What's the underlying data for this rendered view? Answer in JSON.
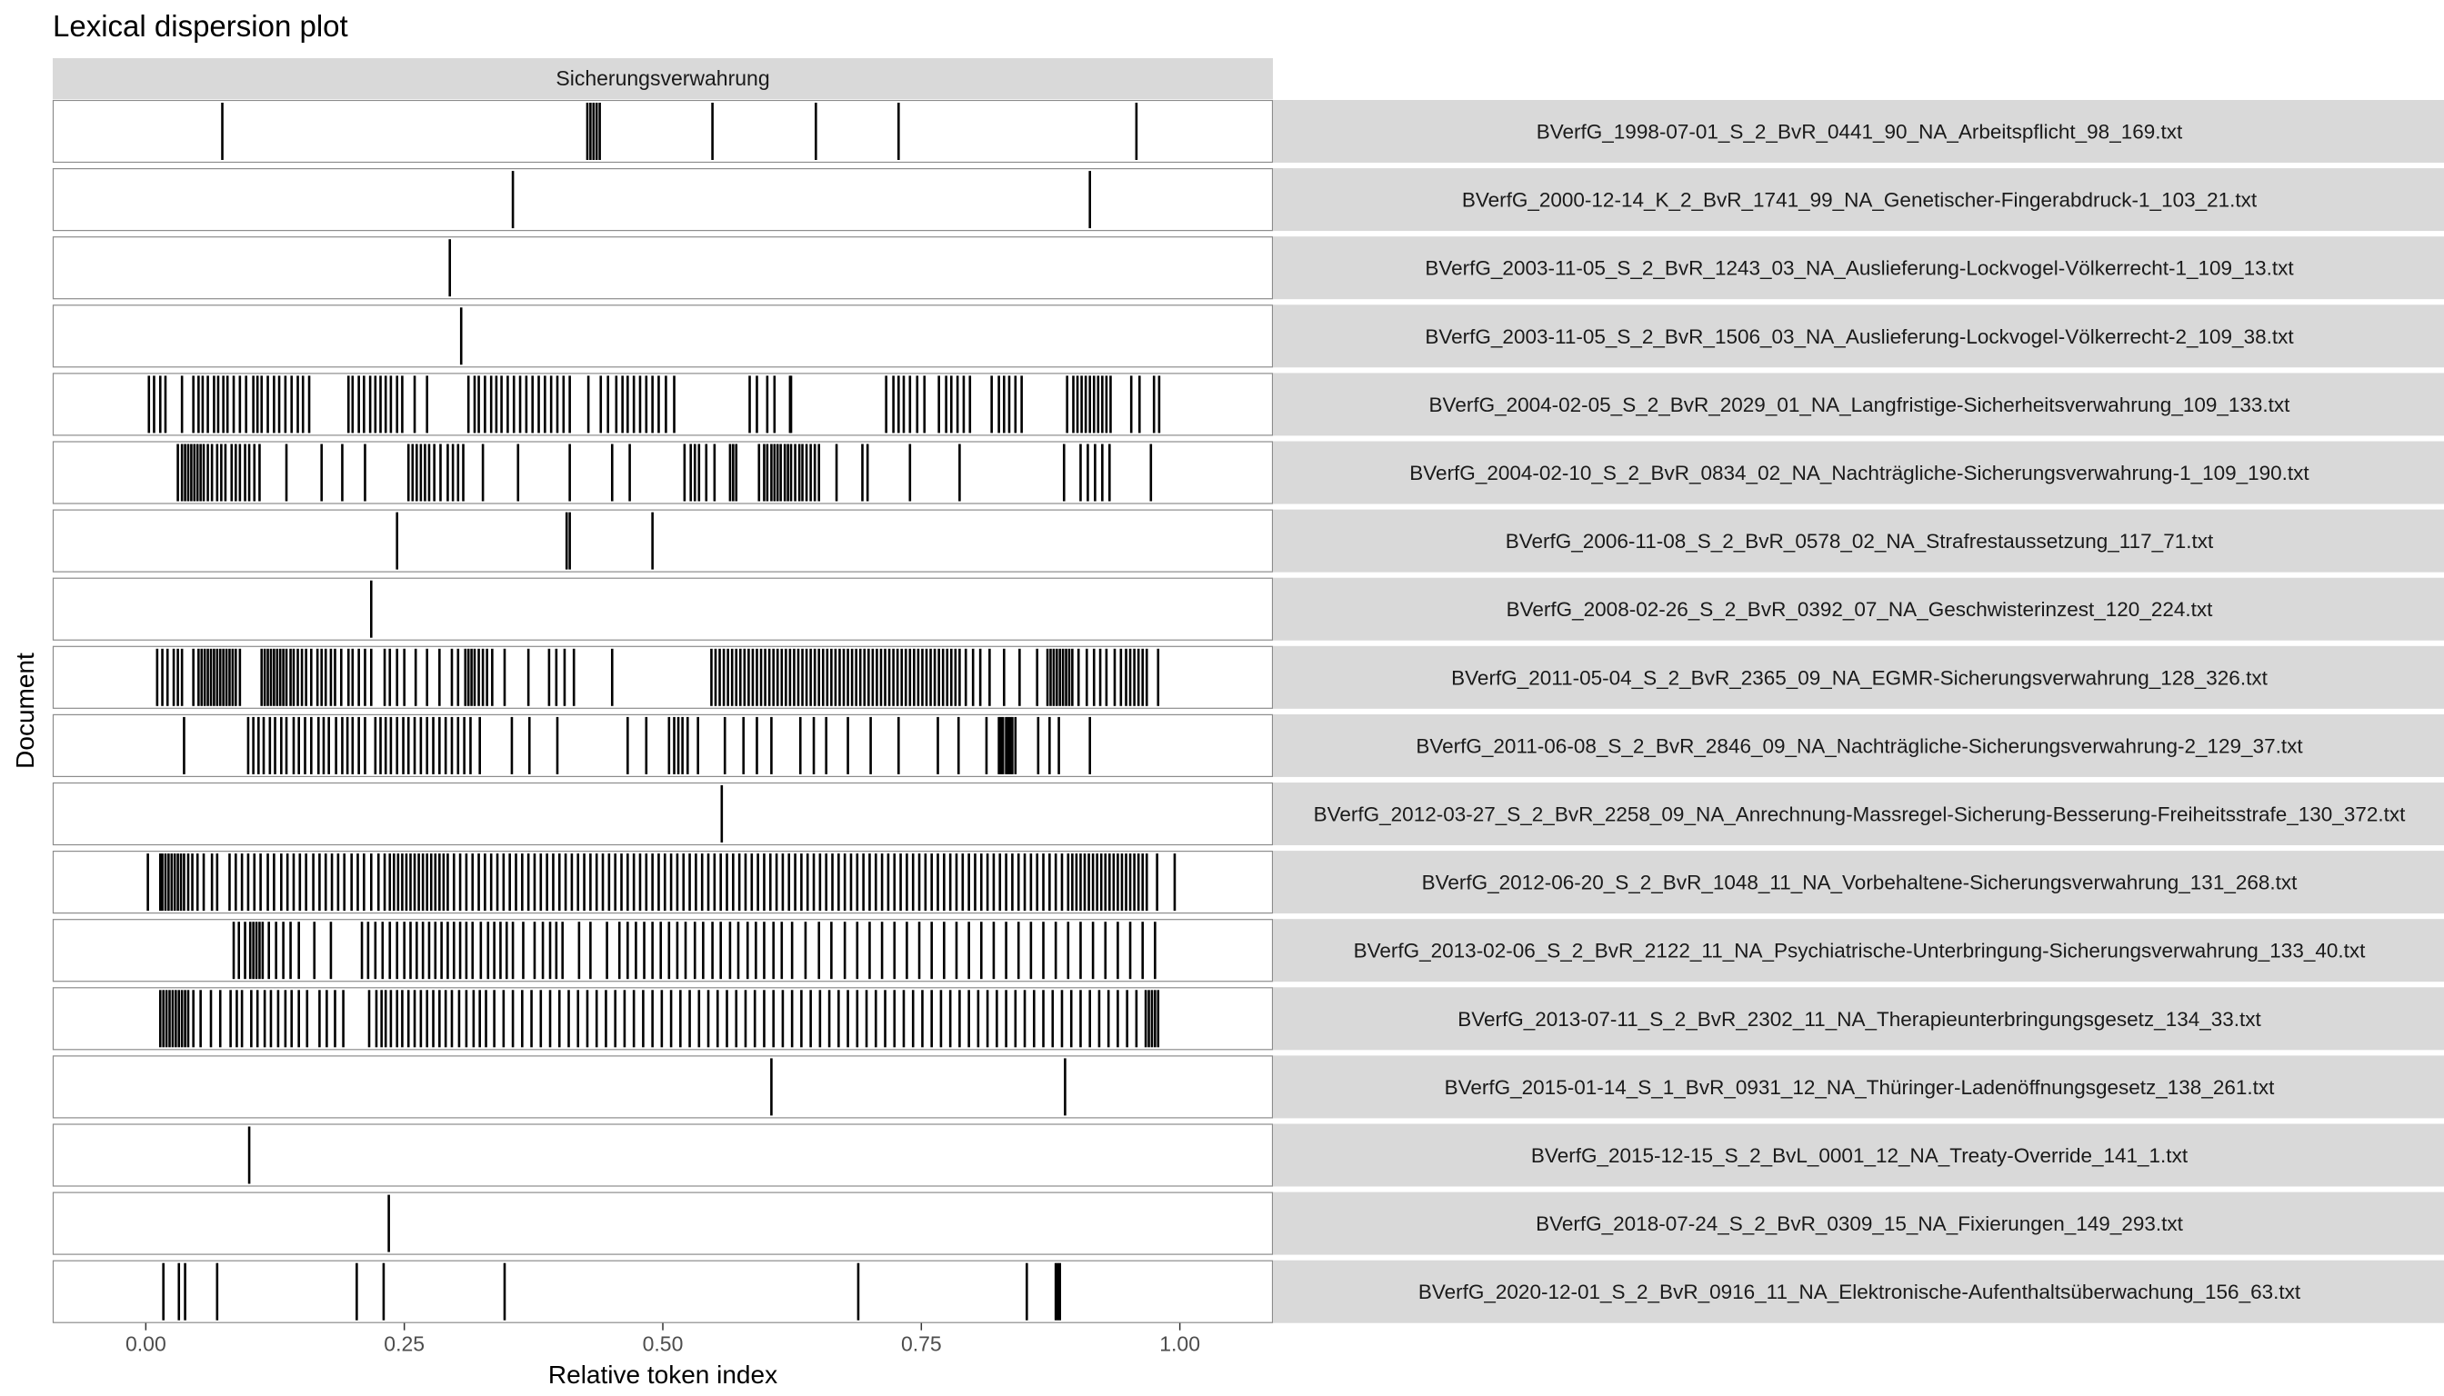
{
  "chart_data": {
    "type": "lexical-dispersion",
    "title": "Lexical dispersion plot",
    "facet_label": "Sicherungsverwahrung",
    "xlabel": "Relative token index",
    "ylabel": "Document",
    "xlim": [
      -0.09,
      1.09
    ],
    "x_ticks": [
      {
        "value": 0.0,
        "label": "0.00"
      },
      {
        "value": 0.25,
        "label": "0.25"
      },
      {
        "value": 0.5,
        "label": "0.50"
      },
      {
        "value": 0.75,
        "label": "0.75"
      },
      {
        "value": 1.0,
        "label": "1.00"
      }
    ],
    "colors": {
      "strip_fill": "#d9d9d9",
      "panel_border": "#8c8c8c",
      "mark": "#000000",
      "tick": "#333333"
    },
    "documents": [
      {
        "name": "BVerfG_1998-07-01_S_2_BvR_0441_90_NA_Arbeitspflicht_98_169.txt",
        "positions": [
          0.074,
          0.427,
          0.43,
          0.433,
          0.436,
          0.439,
          0.548,
          0.648,
          0.728,
          0.958
        ]
      },
      {
        "name": "BVerfG_2000-12-14_K_2_BvR_1741_99_NA_Genetischer-Fingerabdruck-1_103_21.txt",
        "positions": [
          0.355,
          0.913
        ]
      },
      {
        "name": "BVerfG_2003-11-05_S_2_BvR_1243_03_NA_Auslieferung-Lockvogel-Völkerrecht-1_109_13.txt",
        "positions": [
          0.294
        ]
      },
      {
        "name": "BVerfG_2003-11-05_S_2_BvR_1506_03_NA_Auslieferung-Lockvogel-Völkerrecht-2_109_38.txt",
        "positions": [
          0.305
        ]
      },
      {
        "name": "BVerfG_2004-02-05_S_2_BvR_2029_01_NA_Langfristige-Sicherheitsverwahrung_109_133.txt",
        "positions": [
          0.003,
          0.008,
          0.014,
          0.019,
          0.035,
          0.046,
          0.051,
          0.055,
          0.06,
          0.066,
          0.07,
          0.075,
          0.079,
          0.085,
          0.091,
          0.097,
          0.104,
          0.108,
          0.112,
          0.118,
          0.124,
          0.129,
          0.135,
          0.141,
          0.147,
          0.152,
          0.158,
          0.196,
          0.2,
          0.206,
          0.211,
          0.217,
          0.222,
          0.227,
          0.232,
          0.237,
          0.243,
          0.248,
          0.26,
          0.272,
          0.312,
          0.318,
          0.322,
          0.328,
          0.334,
          0.339,
          0.344,
          0.35,
          0.356,
          0.362,
          0.368,
          0.374,
          0.38,
          0.386,
          0.392,
          0.398,
          0.404,
          0.41,
          0.428,
          0.44,
          0.447,
          0.455,
          0.461,
          0.466,
          0.472,
          0.478,
          0.484,
          0.49,
          0.496,
          0.503,
          0.511,
          0.584,
          0.591,
          0.601,
          0.608,
          0.623,
          0.624,
          0.716,
          0.723,
          0.728,
          0.733,
          0.739,
          0.746,
          0.753,
          0.767,
          0.774,
          0.779,
          0.785,
          0.791,
          0.797,
          0.818,
          0.825,
          0.83,
          0.835,
          0.841,
          0.847,
          0.891,
          0.897,
          0.901,
          0.905,
          0.909,
          0.913,
          0.917,
          0.921,
          0.925,
          0.929,
          0.933,
          0.953,
          0.961,
          0.975,
          0.98
        ]
      },
      {
        "name": "BVerfG_2004-02-10_S_2_BvR_0834_02_NA_Nachträgliche-Sicherungsverwahrung-1_109_190.txt",
        "positions": [
          0.031,
          0.035,
          0.038,
          0.041,
          0.044,
          0.047,
          0.05,
          0.053,
          0.056,
          0.06,
          0.064,
          0.069,
          0.073,
          0.077,
          0.083,
          0.087,
          0.091,
          0.096,
          0.1,
          0.105,
          0.11,
          0.136,
          0.17,
          0.19,
          0.212,
          0.254,
          0.258,
          0.262,
          0.266,
          0.27,
          0.274,
          0.279,
          0.285,
          0.292,
          0.297,
          0.302,
          0.307,
          0.326,
          0.36,
          0.41,
          0.451,
          0.468,
          0.521,
          0.527,
          0.531,
          0.535,
          0.542,
          0.55,
          0.565,
          0.568,
          0.571,
          0.593,
          0.598,
          0.601,
          0.605,
          0.608,
          0.611,
          0.614,
          0.618,
          0.621,
          0.624,
          0.628,
          0.632,
          0.635,
          0.639,
          0.643,
          0.647,
          0.651,
          0.668,
          0.693,
          0.698,
          0.739,
          0.787,
          0.888,
          0.904,
          0.911,
          0.918,
          0.925,
          0.932,
          0.972
        ]
      },
      {
        "name": "BVerfG_2006-11-08_S_2_BvR_0578_02_NA_Strafrestaussetzung_117_71.txt",
        "positions": [
          0.243,
          0.407,
          0.41,
          0.49
        ]
      },
      {
        "name": "BVerfG_2008-02-26_S_2_BvR_0392_07_NA_Geschwisterinzest_120_224.txt",
        "positions": [
          0.218
        ]
      },
      {
        "name": "BVerfG_2011-05-04_S_2_BvR_2365_09_NA_EGMR-Sicherungsverwahrung_128_326.txt",
        "positions": [
          0.011,
          0.016,
          0.021,
          0.027,
          0.031,
          0.035,
          0.046,
          0.051,
          0.054,
          0.057,
          0.06,
          0.063,
          0.066,
          0.069,
          0.072,
          0.075,
          0.078,
          0.081,
          0.084,
          0.087,
          0.091,
          0.112,
          0.115,
          0.118,
          0.121,
          0.124,
          0.127,
          0.13,
          0.133,
          0.136,
          0.14,
          0.143,
          0.147,
          0.151,
          0.155,
          0.16,
          0.166,
          0.17,
          0.174,
          0.179,
          0.183,
          0.189,
          0.196,
          0.2,
          0.206,
          0.212,
          0.218,
          0.231,
          0.236,
          0.243,
          0.25,
          0.261,
          0.272,
          0.284,
          0.296,
          0.302,
          0.309,
          0.312,
          0.315,
          0.318,
          0.322,
          0.326,
          0.33,
          0.335,
          0.347,
          0.37,
          0.39,
          0.397,
          0.405,
          0.414,
          0.451,
          0.547,
          0.551,
          0.555,
          0.559,
          0.563,
          0.567,
          0.571,
          0.575,
          0.579,
          0.583,
          0.587,
          0.591,
          0.595,
          0.599,
          0.603,
          0.607,
          0.611,
          0.615,
          0.619,
          0.623,
          0.627,
          0.631,
          0.635,
          0.639,
          0.643,
          0.647,
          0.651,
          0.655,
          0.659,
          0.663,
          0.667,
          0.671,
          0.675,
          0.679,
          0.683,
          0.687,
          0.691,
          0.695,
          0.699,
          0.703,
          0.707,
          0.711,
          0.715,
          0.719,
          0.723,
          0.727,
          0.731,
          0.735,
          0.739,
          0.743,
          0.747,
          0.751,
          0.755,
          0.759,
          0.763,
          0.767,
          0.771,
          0.775,
          0.779,
          0.783,
          0.787,
          0.793,
          0.8,
          0.807,
          0.816,
          0.83,
          0.845,
          0.862,
          0.872,
          0.875,
          0.878,
          0.881,
          0.884,
          0.887,
          0.89,
          0.893,
          0.896,
          0.902,
          0.91,
          0.917,
          0.923,
          0.929,
          0.937,
          0.943,
          0.948,
          0.952,
          0.956,
          0.96,
          0.964,
          0.968,
          0.979
        ]
      },
      {
        "name": "BVerfG_2011-06-08_S_2_BvR_2846_09_NA_Nachträgliche-Sicherungsverwahrung-2_129_37.txt",
        "positions": [
          0.037,
          0.099,
          0.104,
          0.109,
          0.114,
          0.12,
          0.125,
          0.131,
          0.136,
          0.143,
          0.148,
          0.154,
          0.16,
          0.167,
          0.172,
          0.177,
          0.184,
          0.19,
          0.195,
          0.2,
          0.206,
          0.212,
          0.222,
          0.227,
          0.232,
          0.237,
          0.243,
          0.249,
          0.254,
          0.26,
          0.266,
          0.272,
          0.278,
          0.284,
          0.29,
          0.296,
          0.302,
          0.308,
          0.314,
          0.323,
          0.354,
          0.371,
          0.398,
          0.466,
          0.484,
          0.506,
          0.511,
          0.515,
          0.519,
          0.524,
          0.534,
          0.56,
          0.578,
          0.591,
          0.605,
          0.633,
          0.646,
          0.658,
          0.679,
          0.701,
          0.728,
          0.766,
          0.786,
          0.813,
          0.825,
          0.827,
          0.829,
          0.832,
          0.834,
          0.836,
          0.838,
          0.841,
          0.863,
          0.874,
          0.883,
          0.913
        ]
      },
      {
        "name": "BVerfG_2012-03-27_S_2_BvR_2258_09_NA_Anrechnung-Massregel-Sicherung-Besserung-Freiheitsstrafe_130_372.txt",
        "positions": [
          0.557
        ]
      },
      {
        "name": "BVerfG_2012-06-20_S_2_BvR_1048_11_NA_Vorbehaltene-Sicherungsverwahrung_131_268.txt",
        "positions": [
          0.002,
          0.014,
          0.016,
          0.019,
          0.022,
          0.025,
          0.028,
          0.031,
          0.034,
          0.037,
          0.041,
          0.045,
          0.05,
          0.056,
          0.064,
          0.069,
          0.081,
          0.087,
          0.093,
          0.099,
          0.105,
          0.111,
          0.118,
          0.124,
          0.131,
          0.137,
          0.143,
          0.149,
          0.155,
          0.162,
          0.168,
          0.174,
          0.18,
          0.186,
          0.192,
          0.199,
          0.205,
          0.211,
          0.218,
          0.225,
          0.231,
          0.236,
          0.24,
          0.244,
          0.248,
          0.252,
          0.256,
          0.26,
          0.264,
          0.268,
          0.272,
          0.276,
          0.28,
          0.284,
          0.288,
          0.292,
          0.298,
          0.304,
          0.31,
          0.316,
          0.322,
          0.328,
          0.334,
          0.34,
          0.346,
          0.352,
          0.358,
          0.364,
          0.37,
          0.376,
          0.382,
          0.388,
          0.394,
          0.4,
          0.406,
          0.412,
          0.418,
          0.424,
          0.43,
          0.436,
          0.442,
          0.448,
          0.454,
          0.46,
          0.466,
          0.472,
          0.478,
          0.484,
          0.49,
          0.496,
          0.502,
          0.508,
          0.514,
          0.52,
          0.526,
          0.532,
          0.538,
          0.544,
          0.55,
          0.556,
          0.562,
          0.568,
          0.574,
          0.58,
          0.586,
          0.592,
          0.598,
          0.604,
          0.61,
          0.616,
          0.622,
          0.628,
          0.634,
          0.64,
          0.646,
          0.652,
          0.658,
          0.664,
          0.67,
          0.676,
          0.682,
          0.688,
          0.694,
          0.7,
          0.706,
          0.712,
          0.718,
          0.724,
          0.73,
          0.736,
          0.742,
          0.748,
          0.754,
          0.76,
          0.766,
          0.772,
          0.778,
          0.784,
          0.79,
          0.796,
          0.802,
          0.808,
          0.814,
          0.82,
          0.826,
          0.832,
          0.838,
          0.844,
          0.85,
          0.856,
          0.862,
          0.868,
          0.874,
          0.88,
          0.886,
          0.892,
          0.896,
          0.9,
          0.904,
          0.908,
          0.912,
          0.916,
          0.92,
          0.924,
          0.928,
          0.932,
          0.936,
          0.94,
          0.944,
          0.948,
          0.952,
          0.956,
          0.96,
          0.964,
          0.968,
          0.978,
          0.995
        ]
      },
      {
        "name": "BVerfG_2013-02-06_S_2_BvR_2122_11_NA_Psychiatrische-Unterbringung-Sicherungsverwahrung_133_40.txt",
        "positions": [
          0.085,
          0.09,
          0.096,
          0.101,
          0.104,
          0.107,
          0.11,
          0.113,
          0.119,
          0.126,
          0.133,
          0.14,
          0.148,
          0.163,
          0.179,
          0.209,
          0.215,
          0.222,
          0.229,
          0.236,
          0.243,
          0.25,
          0.256,
          0.262,
          0.268,
          0.274,
          0.28,
          0.286,
          0.292,
          0.298,
          0.304,
          0.31,
          0.316,
          0.324,
          0.331,
          0.337,
          0.343,
          0.349,
          0.355,
          0.365,
          0.376,
          0.384,
          0.391,
          0.397,
          0.403,
          0.419,
          0.43,
          0.446,
          0.458,
          0.466,
          0.474,
          0.482,
          0.49,
          0.498,
          0.506,
          0.514,
          0.522,
          0.531,
          0.539,
          0.548,
          0.556,
          0.565,
          0.573,
          0.582,
          0.59,
          0.598,
          0.607,
          0.615,
          0.625,
          0.638,
          0.651,
          0.663,
          0.676,
          0.688,
          0.7,
          0.712,
          0.724,
          0.736,
          0.748,
          0.76,
          0.772,
          0.784,
          0.796,
          0.808,
          0.82,
          0.832,
          0.844,
          0.856,
          0.868,
          0.88,
          0.892,
          0.904,
          0.916,
          0.928,
          0.94,
          0.952,
          0.964,
          0.976
        ]
      },
      {
        "name": "BVerfG_2013-07-11_S_2_BvR_2302_11_NA_Therapieunterbringungsgesetz_134_33.txt",
        "positions": [
          0.014,
          0.017,
          0.02,
          0.023,
          0.026,
          0.029,
          0.032,
          0.035,
          0.038,
          0.041,
          0.046,
          0.053,
          0.063,
          0.072,
          0.082,
          0.088,
          0.093,
          0.102,
          0.108,
          0.115,
          0.121,
          0.128,
          0.135,
          0.141,
          0.148,
          0.156,
          0.168,
          0.175,
          0.183,
          0.191,
          0.216,
          0.223,
          0.228,
          0.232,
          0.237,
          0.243,
          0.248,
          0.254,
          0.26,
          0.266,
          0.272,
          0.278,
          0.284,
          0.29,
          0.296,
          0.303,
          0.31,
          0.317,
          0.323,
          0.329,
          0.337,
          0.346,
          0.355,
          0.364,
          0.373,
          0.382,
          0.391,
          0.4,
          0.409,
          0.418,
          0.427,
          0.436,
          0.445,
          0.454,
          0.463,
          0.472,
          0.481,
          0.49,
          0.499,
          0.508,
          0.517,
          0.526,
          0.535,
          0.544,
          0.553,
          0.562,
          0.571,
          0.58,
          0.589,
          0.598,
          0.607,
          0.616,
          0.625,
          0.634,
          0.643,
          0.652,
          0.661,
          0.67,
          0.679,
          0.688,
          0.697,
          0.706,
          0.715,
          0.724,
          0.733,
          0.742,
          0.751,
          0.76,
          0.769,
          0.778,
          0.787,
          0.796,
          0.805,
          0.814,
          0.823,
          0.832,
          0.841,
          0.85,
          0.859,
          0.868,
          0.877,
          0.886,
          0.895,
          0.904,
          0.913,
          0.922,
          0.931,
          0.94,
          0.949,
          0.958,
          0.967,
          0.97,
          0.973,
          0.976,
          0.979
        ]
      },
      {
        "name": "BVerfG_2015-01-14_S_1_BvR_0931_12_NA_Thüringer-Ladenöffnungsgesetz_138_261.txt",
        "positions": [
          0.605,
          0.889
        ]
      },
      {
        "name": "BVerfG_2015-12-15_S_2_BvL_0001_12_NA_Treaty-Override_141_1.txt",
        "positions": [
          0.1
        ]
      },
      {
        "name": "BVerfG_2018-07-24_S_2_BvR_0309_15_NA_Fixierungen_149_293.txt",
        "positions": [
          0.235
        ]
      },
      {
        "name": "BVerfG_2020-12-01_S_2_BvR_0916_11_NA_Elektronische-Aufenthaltsüberwachung_156_63.txt",
        "positions": [
          0.017,
          0.032,
          0.038,
          0.069,
          0.204,
          0.23,
          0.347,
          0.689,
          0.852,
          0.88,
          0.882,
          0.884
        ]
      }
    ]
  }
}
